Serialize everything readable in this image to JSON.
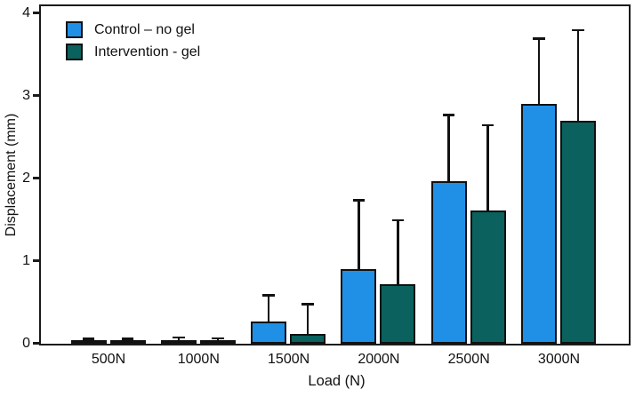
{
  "chart_data": {
    "type": "bar",
    "title": "",
    "xlabel": "Load (N)",
    "ylabel": "Displacement (mm)",
    "categories": [
      "500N",
      "1000N",
      "1500N",
      "2000N",
      "2500N",
      "3000N"
    ],
    "series": [
      {
        "name": "Control – no gel",
        "color": "#2090E6",
        "values": [
          0.02,
          0.03,
          0.27,
          0.9,
          1.97,
          2.9
        ],
        "errors_upper": [
          0.02,
          0.03,
          0.3,
          0.82,
          0.78,
          0.78
        ]
      },
      {
        "name": "Intervention - gel",
        "color": "#0A615D",
        "values": [
          0.02,
          0.02,
          0.12,
          0.72,
          1.61,
          2.7
        ],
        "errors_upper": [
          0.02,
          0.03,
          0.34,
          0.76,
          1.02,
          1.08
        ]
      }
    ],
    "ylim": [
      0,
      4.08
    ],
    "yticks": [
      0,
      1,
      2,
      3,
      4
    ],
    "legend_position": "top-left-inside",
    "grid": false,
    "error_bars": "upper-only",
    "bar_outline_color": "#111111",
    "axis_color": "#1a1a1a"
  }
}
